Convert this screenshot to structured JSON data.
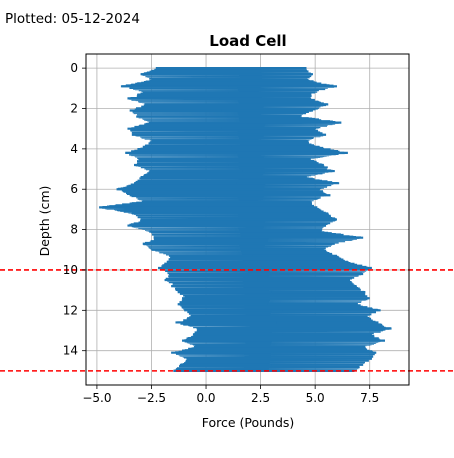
{
  "figure": {
    "plotted_label": "Plotted: 05-12-2024"
  },
  "chart_data": {
    "type": "line",
    "title": "Load Cell",
    "xlabel": "Force (Pounds)",
    "ylabel": "Depth (cm)",
    "xlim": [
      -5.5,
      9.3
    ],
    "ylim": [
      15.7,
      -0.7
    ],
    "y_inverted": true,
    "grid": true,
    "x_ticks": [
      -5.0,
      -2.5,
      0.0,
      2.5,
      5.0,
      7.5
    ],
    "x_tick_labels": [
      "−5.0",
      "−2.5",
      "0.0",
      "2.5",
      "5.0",
      "7.5"
    ],
    "y_ticks": [
      0,
      2,
      4,
      6,
      8,
      10,
      12,
      14
    ],
    "y_tick_labels": [
      "0",
      "2",
      "4",
      "6",
      "8",
      "10",
      "12",
      "14"
    ],
    "series": [
      {
        "color": "#1f77b4",
        "depth_min_force": [
          [
            0.0,
            -2.3
          ],
          [
            0.3,
            -3.0
          ],
          [
            0.6,
            -2.5
          ],
          [
            0.9,
            -3.9
          ],
          [
            1.2,
            -2.9
          ],
          [
            1.5,
            -3.6
          ],
          [
            1.8,
            -2.8
          ],
          [
            2.1,
            -3.5
          ],
          [
            2.4,
            -3.2
          ],
          [
            2.7,
            -2.6
          ],
          [
            3.0,
            -3.6
          ],
          [
            3.3,
            -3.4
          ],
          [
            3.6,
            -2.5
          ],
          [
            3.9,
            -2.9
          ],
          [
            4.2,
            -3.7
          ],
          [
            4.5,
            -3.1
          ],
          [
            4.8,
            -3.3
          ],
          [
            5.1,
            -2.6
          ],
          [
            5.4,
            -3.0
          ],
          [
            5.7,
            -3.3
          ],
          [
            6.0,
            -4.1
          ],
          [
            6.3,
            -3.5
          ],
          [
            6.6,
            -2.9
          ],
          [
            6.9,
            -4.9
          ],
          [
            7.2,
            -3.4
          ],
          [
            7.5,
            -3.0
          ],
          [
            7.8,
            -3.6
          ],
          [
            8.1,
            -2.6
          ],
          [
            8.4,
            -2.4
          ],
          [
            8.7,
            -2.9
          ],
          [
            9.0,
            -2.5
          ],
          [
            9.3,
            -1.7
          ],
          [
            9.6,
            -1.8
          ],
          [
            9.9,
            -2.2
          ],
          [
            10.2,
            -1.7
          ],
          [
            10.5,
            -1.9
          ],
          [
            10.8,
            -1.6
          ],
          [
            11.1,
            -1.3
          ],
          [
            11.4,
            -1.1
          ],
          [
            11.7,
            -1.3
          ],
          [
            12.0,
            -1.0
          ],
          [
            12.3,
            -0.7
          ],
          [
            12.6,
            -1.4
          ],
          [
            12.9,
            -0.4
          ],
          [
            13.2,
            -0.6
          ],
          [
            13.5,
            -1.1
          ],
          [
            13.8,
            -0.5
          ],
          [
            14.1,
            -1.6
          ],
          [
            14.4,
            -0.9
          ],
          [
            14.7,
            -1.2
          ],
          [
            15.0,
            -1.5
          ]
        ],
        "depth_max_force": [
          [
            0.0,
            4.6
          ],
          [
            0.3,
            4.9
          ],
          [
            0.6,
            4.7
          ],
          [
            0.9,
            6.0
          ],
          [
            1.2,
            5.0
          ],
          [
            1.5,
            4.8
          ],
          [
            1.8,
            5.6
          ],
          [
            2.1,
            4.9
          ],
          [
            2.4,
            4.3
          ],
          [
            2.7,
            6.2
          ],
          [
            3.0,
            5.0
          ],
          [
            3.3,
            5.5
          ],
          [
            3.6,
            4.6
          ],
          [
            3.9,
            5.2
          ],
          [
            4.2,
            6.5
          ],
          [
            4.5,
            4.8
          ],
          [
            4.8,
            5.4
          ],
          [
            5.1,
            5.9
          ],
          [
            5.4,
            4.5
          ],
          [
            5.7,
            6.1
          ],
          [
            6.0,
            5.2
          ],
          [
            6.3,
            5.7
          ],
          [
            6.6,
            4.8
          ],
          [
            6.9,
            5.1
          ],
          [
            7.2,
            5.6
          ],
          [
            7.5,
            6.0
          ],
          [
            7.8,
            5.5
          ],
          [
            8.1,
            5.3
          ],
          [
            8.4,
            7.2
          ],
          [
            8.7,
            5.9
          ],
          [
            9.0,
            5.4
          ],
          [
            9.3,
            6.0
          ],
          [
            9.6,
            6.5
          ],
          [
            9.9,
            7.6
          ],
          [
            10.2,
            7.2
          ],
          [
            10.5,
            6.6
          ],
          [
            10.8,
            6.9
          ],
          [
            11.1,
            7.3
          ],
          [
            11.4,
            7.5
          ],
          [
            11.7,
            6.9
          ],
          [
            12.0,
            8.0
          ],
          [
            12.3,
            7.4
          ],
          [
            12.6,
            7.9
          ],
          [
            12.9,
            8.5
          ],
          [
            13.2,
            7.6
          ],
          [
            13.5,
            8.2
          ],
          [
            13.8,
            7.3
          ],
          [
            14.1,
            7.8
          ],
          [
            14.4,
            7.6
          ],
          [
            14.7,
            7.2
          ],
          [
            15.0,
            6.8
          ]
        ]
      }
    ],
    "reference_lines": [
      {
        "axis": "y",
        "value": 10,
        "color": "#ff0000",
        "style": "dashed"
      },
      {
        "axis": "y",
        "value": 15,
        "color": "#ff0000",
        "style": "dashed"
      }
    ]
  }
}
